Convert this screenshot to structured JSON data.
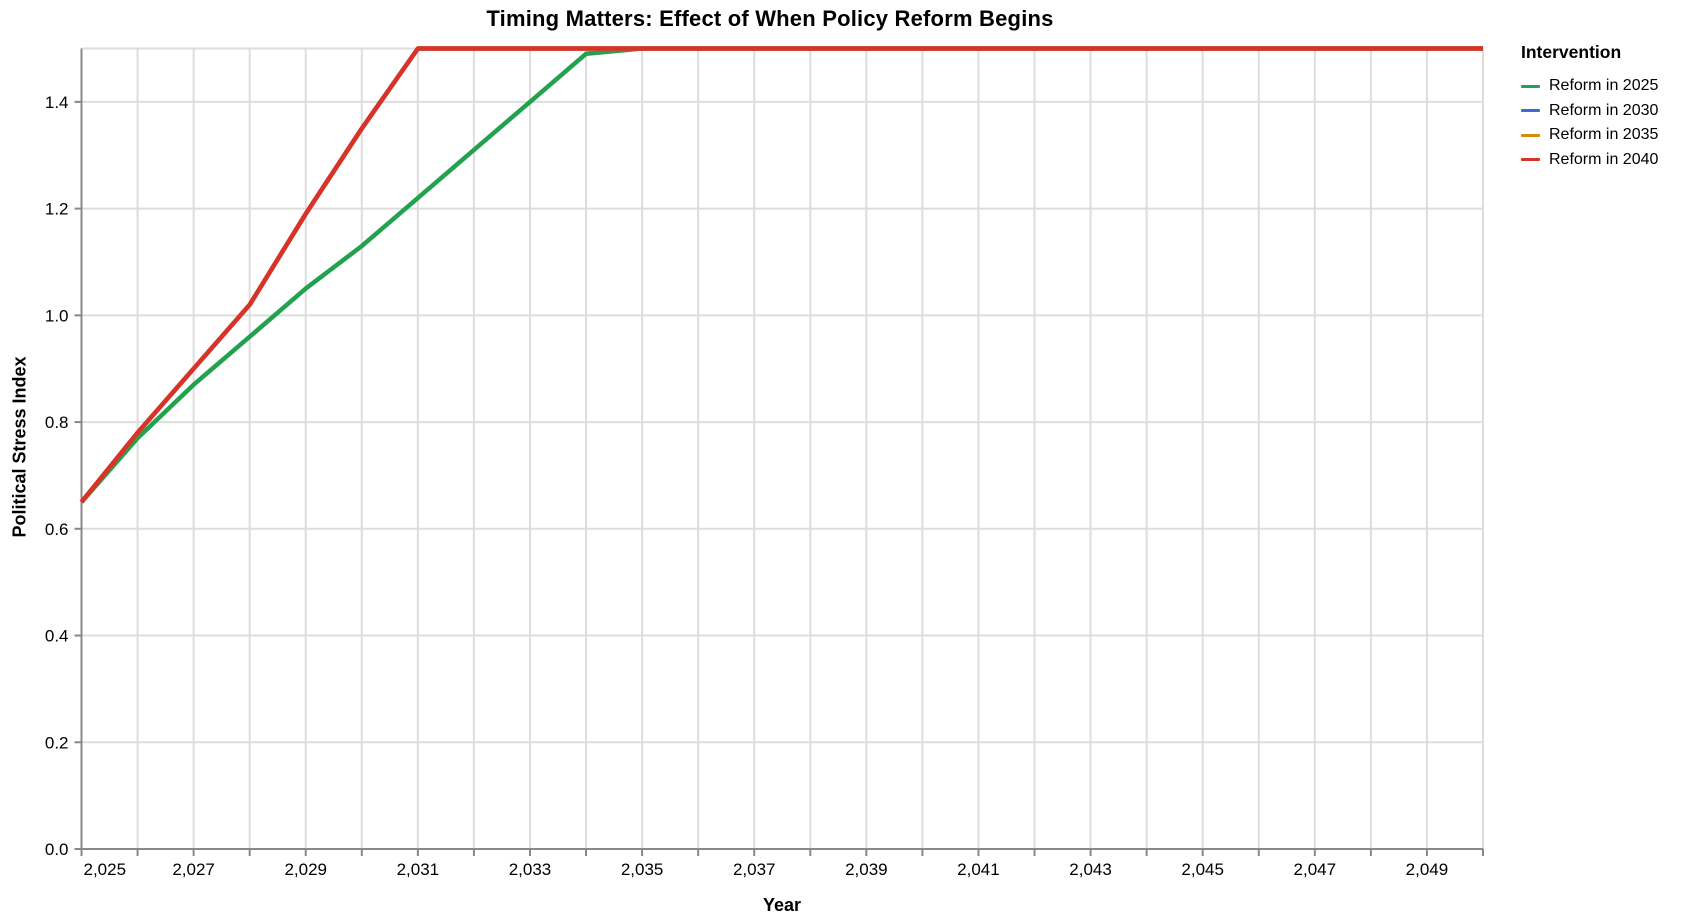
{
  "chart_data": {
    "type": "line",
    "title": "Timing Matters: Effect of When Policy Reform Begins",
    "xlabel": "Year",
    "ylabel": "Political Stress Index",
    "legend_title": "Intervention",
    "legend_position": "right",
    "grid": true,
    "xlim": [
      2025,
      2050
    ],
    "ylim": [
      0,
      1.5
    ],
    "x": [
      2025,
      2026,
      2027,
      2028,
      2029,
      2030,
      2031,
      2032,
      2033,
      2034,
      2035,
      2036,
      2037,
      2038,
      2039,
      2040,
      2041,
      2042,
      2043,
      2044,
      2045,
      2046,
      2047,
      2048,
      2049,
      2050
    ],
    "series": [
      {
        "name": "Reform in 2025",
        "color": "#22a14f",
        "values": [
          0.65,
          0.77,
          0.87,
          0.96,
          1.05,
          1.13,
          1.22,
          1.31,
          1.4,
          1.49,
          1.5,
          1.5,
          1.5,
          1.5,
          1.5,
          1.5,
          1.5,
          1.5,
          1.5,
          1.5,
          1.5,
          1.5,
          1.5,
          1.5,
          1.5,
          1.5
        ]
      },
      {
        "name": "Reform in 2030",
        "color": "#3b6cd4",
        "values": [
          0.65,
          0.78,
          0.9,
          1.02,
          1.19,
          1.35,
          1.5,
          1.5,
          1.5,
          1.5,
          1.5,
          1.5,
          1.5,
          1.5,
          1.5,
          1.5,
          1.5,
          1.5,
          1.5,
          1.5,
          1.5,
          1.5,
          1.5,
          1.5,
          1.5,
          1.5
        ]
      },
      {
        "name": "Reform in 2035",
        "color": "#d48d0a",
        "values": [
          0.65,
          0.78,
          0.9,
          1.02,
          1.19,
          1.35,
          1.5,
          1.5,
          1.5,
          1.5,
          1.5,
          1.5,
          1.5,
          1.5,
          1.5,
          1.5,
          1.5,
          1.5,
          1.5,
          1.5,
          1.5,
          1.5,
          1.5,
          1.5,
          1.5,
          1.5
        ]
      },
      {
        "name": "Reform in 2040",
        "color": "#d93228",
        "values": [
          0.65,
          0.78,
          0.9,
          1.02,
          1.19,
          1.35,
          1.5,
          1.5,
          1.5,
          1.5,
          1.5,
          1.5,
          1.5,
          1.5,
          1.5,
          1.5,
          1.5,
          1.5,
          1.5,
          1.5,
          1.5,
          1.5,
          1.5,
          1.5,
          1.5,
          1.5
        ]
      }
    ],
    "x_labels": [
      {
        "year": 2025,
        "text": "2,025"
      },
      {
        "year": 2027,
        "text": "2,027"
      },
      {
        "year": 2029,
        "text": "2,029"
      },
      {
        "year": 2031,
        "text": "2,031"
      },
      {
        "year": 2033,
        "text": "2,033"
      },
      {
        "year": 2035,
        "text": "2,035"
      },
      {
        "year": 2037,
        "text": "2,037"
      },
      {
        "year": 2039,
        "text": "2,039"
      },
      {
        "year": 2041,
        "text": "2,041"
      },
      {
        "year": 2043,
        "text": "2,043"
      },
      {
        "year": 2045,
        "text": "2,045"
      },
      {
        "year": 2047,
        "text": "2,047"
      },
      {
        "year": 2049,
        "text": "2,049"
      }
    ],
    "y_ticks": [
      {
        "v": 0.0,
        "text": "0.0"
      },
      {
        "v": 0.2,
        "text": "0.2"
      },
      {
        "v": 0.4,
        "text": "0.4"
      },
      {
        "v": 0.6,
        "text": "0.6"
      },
      {
        "v": 0.8,
        "text": "0.8"
      },
      {
        "v": 1.0,
        "text": "1.0"
      },
      {
        "v": 1.2,
        "text": "1.2"
      },
      {
        "v": 1.4,
        "text": "1.4"
      }
    ],
    "y_top_gridline": 1.5,
    "grid_color": "#dddddd",
    "axis_color": "#888888",
    "label_color": "#000000"
  }
}
